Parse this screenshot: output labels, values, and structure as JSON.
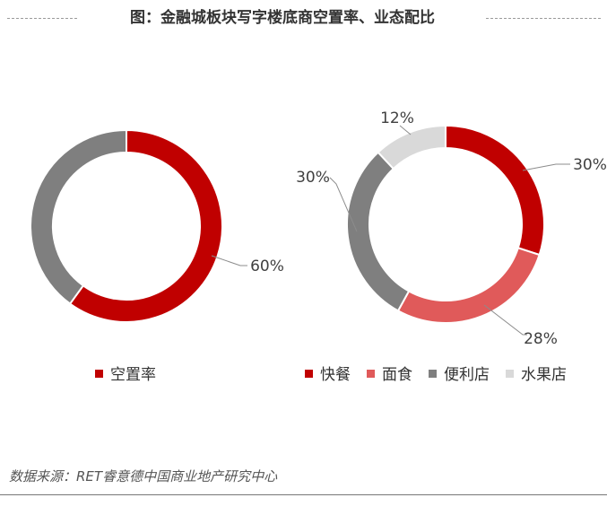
{
  "title": "图：金融城板块写字楼底商空置率、业态配比",
  "source": "数据来源：RET睿意德中国商业地产研究中心",
  "chart_data": [
    {
      "type": "pie",
      "donut": true,
      "legend_position": "bottom",
      "slices": [
        {
          "label": "空置率",
          "value": 60,
          "value_label": "60%",
          "color": "#c00000"
        },
        {
          "label": "",
          "value": 40,
          "value_label": "",
          "color": "#7f7f7f"
        }
      ],
      "legend": [
        {
          "label": "空置率",
          "color": "#c00000"
        }
      ]
    },
    {
      "type": "pie",
      "donut": true,
      "legend_position": "bottom",
      "slices": [
        {
          "label": "快餐",
          "value": 30,
          "value_label": "30%",
          "color": "#c00000"
        },
        {
          "label": "面食",
          "value": 28,
          "value_label": "28%",
          "color": "#e05a5a"
        },
        {
          "label": "便利店",
          "value": 30,
          "value_label": "30%",
          "color": "#7f7f7f"
        },
        {
          "label": "水果店",
          "value": 12,
          "value_label": "12%",
          "color": "#d9d9d9"
        }
      ],
      "legend": [
        {
          "label": "快餐",
          "color": "#c00000"
        },
        {
          "label": "面食",
          "color": "#e05a5a"
        },
        {
          "label": "便利店",
          "color": "#7f7f7f"
        },
        {
          "label": "水果店",
          "color": "#d9d9d9"
        }
      ]
    }
  ]
}
